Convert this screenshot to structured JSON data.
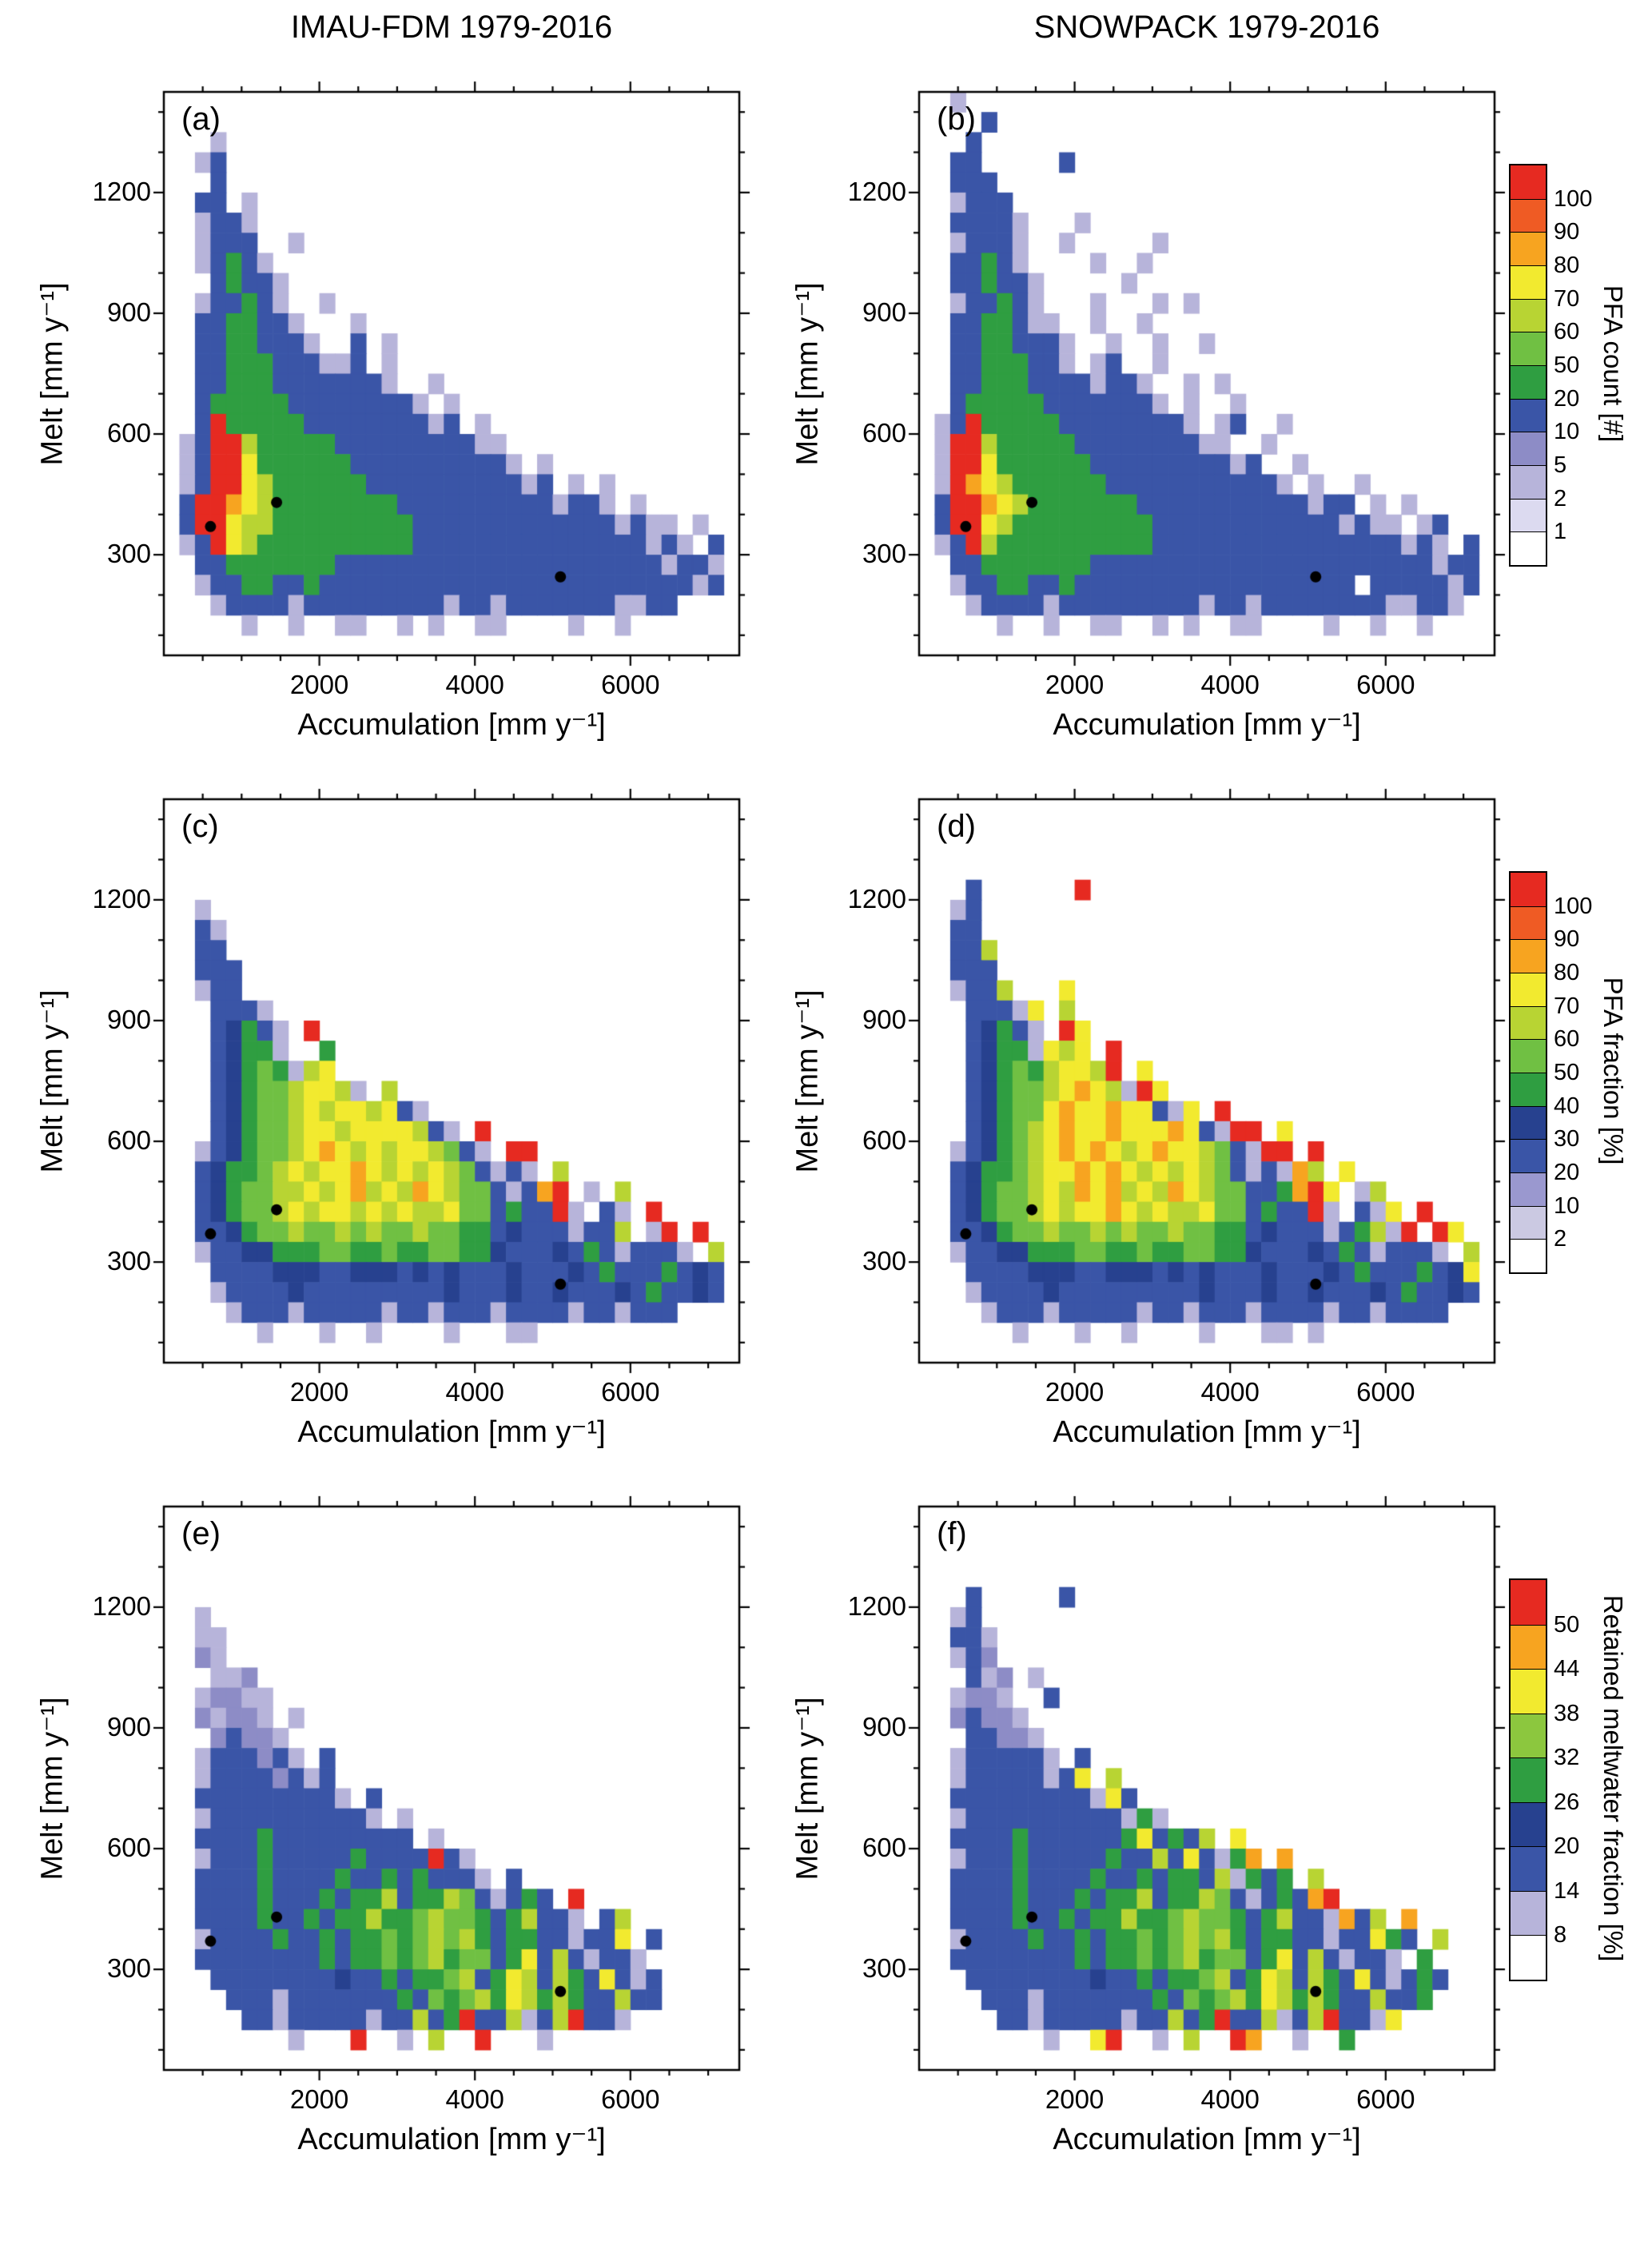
{
  "titles": {
    "left": "IMAU-FDM 1979-2016",
    "right": "SNOWPACK 1979-2016"
  },
  "palette": {
    "a": "#b7b4da",
    "b": "#8d8cc6",
    "c": "#3a55a7",
    "d": "#27418f",
    "e": "#2f9e41",
    "f": "#70c043",
    "g": "#b8d433",
    "h": "#f2ea2f",
    "i": "#f7a420",
    "j": "#ef5b24",
    "k": "#e62a21"
  },
  "colorbars": {
    "count": {
      "title": "PFA count [#]",
      "tick_labels": [
        "1",
        "2",
        "5",
        "10",
        "20",
        "50",
        "60",
        "70",
        "80",
        "90",
        "100"
      ],
      "box_colors_bottom_to_top": [
        "#ffffff",
        "#dcdaf0",
        "#b7b4da",
        "#8d8cc6",
        "#3a55a7",
        "#2f9e41",
        "#70c043",
        "#b8d433",
        "#f2ea2f",
        "#f7a420",
        "#ef5b24",
        "#e62a21"
      ]
    },
    "fraction": {
      "title": "PFA fraction [%]",
      "tick_labels": [
        "2",
        "10",
        "20",
        "30",
        "40",
        "50",
        "60",
        "70",
        "80",
        "90",
        "100"
      ],
      "box_colors_bottom_to_top": [
        "#ffffff",
        "#cbc9e2",
        "#9a98cf",
        "#3a55a7",
        "#27418f",
        "#2f9e41",
        "#70c043",
        "#b8d433",
        "#f2ea2f",
        "#f7a420",
        "#ef5b24",
        "#e62a21"
      ]
    },
    "retained": {
      "title": "Retained meltwater fraction [%]",
      "tick_labels": [
        "8",
        "14",
        "20",
        "26",
        "32",
        "38",
        "44",
        "50"
      ],
      "box_colors_bottom_to_top": [
        "#ffffff",
        "#b7b4da",
        "#3a55a7",
        "#27418f",
        "#2f9e41",
        "#8cc73e",
        "#f2ea2f",
        "#f7a420",
        "#e62a21"
      ]
    }
  },
  "chart_data": [
    {
      "id": "a",
      "type": "heatmap",
      "label": "(a)",
      "column_title": "IMAU-FDM 1979-2016",
      "xlabel": "Accumulation [mm y⁻¹]",
      "ylabel": "Melt [mm y⁻¹]",
      "x_range": [
        0,
        7400
      ],
      "y_range": [
        50,
        1450
      ],
      "x_ticks": [
        2000,
        4000,
        6000
      ],
      "y_ticks": [
        300,
        600,
        900,
        1200
      ],
      "x_minor_step": 500,
      "y_minor_step": 100,
      "cell_size": [
        200,
        50
      ],
      "colorbar": "count",
      "dots": [
        [
          600,
          370
        ],
        [
          1450,
          430
        ],
        [
          5100,
          245
        ]
      ],
      "grid": [
        "",
        "",
        "...a",
        "..ac",
        "...c",
        "..cc.a",
        "..acca",
        "..accc..a",
        "..aceca",
        "...cecca",
        "..acceca..a",
        "..cceecca...a",
        "..cceeccca..c.a",
        "..cceeecccaac.a",
        "..cceeeccccccca..a",
        "..ceeeeecccccccca.a",
        "..ckeeeeeccccccccac.a",
        ".ackkgeeeeecccccccccaa",
        ".ackkheeeeeecccccccccca.a",
        ".ackkhgeeeeeeccccccccccac.a.a",
        ".ckkihgeeeeeeeeccccccccccacca.a",
        ".ckkhggeeeeeeeeecccccccccccccacaa.a",
        ".ackhgeeeeeeeeeecccccccccccccccaca.c",
        "..cceeeeeeecccccccccccccccccccccacca",
        "..acceecceccccccccccccccccccccccccac",
        "...accccacccccccccaccacccccccaacc",
        ".....a..a..aa..a.a..aa....a..a",
        ""
      ]
    },
    {
      "id": "b",
      "type": "heatmap",
      "label": "(b)",
      "column_title": "SNOWPACK 1979-2016",
      "xlabel": "Accumulation [mm y⁻¹]",
      "ylabel": "Melt [mm y⁻¹]",
      "x_range": [
        0,
        7400
      ],
      "y_range": [
        50,
        1450
      ],
      "x_ticks": [
        2000,
        4000,
        6000
      ],
      "y_ticks": [
        300,
        600,
        900,
        1200
      ],
      "x_minor_step": 500,
      "y_minor_step": 100,
      "cell_size": [
        200,
        50
      ],
      "colorbar": "count",
      "dots": [
        [
          600,
          370
        ],
        [
          1450,
          430
        ],
        [
          5100,
          245
        ]
      ],
      "grid": [
        "..a",
        "....c",
        "...c",
        "..cc.....c",
        "..ccc",
        "..accc",
        "..cccca...a",
        "..accca..a.....a",
        "..cceca....a..a",
        "..ccecca.....a",
        "..acceca...a...a.a",
        "..cceecaa..a..a",
        "..cceeccca..a..a..a",
        "..cceeecca.ac..a",
        "..cceeeccccacca..a.a",
        "..ceeeeeccccccca.a..a",
        ".ackeeeeecccccccca.ac..a",
        ".akkgeeeeeccccccccaa..a",
        ".akkheeeeeecccccccccac..a",
        ".akihgeeeeeeccccccccccca.a..a",
        ".ckkihgeeeeeeecccccccccccacc.a.a",
        ".ckkhgeeeeeeeeeccccccccccccacaa.ac",
        ".ackgeeeeeeeeeeccccccccccccccccaca.c",
        "..cceeeeeeeccccccccccccccccccccccacc",
        "..acceeccecccccccccccccccccc.cccccac",
        "...accccacccccccccaccaccccccccaacca",
        ".....a..a..aa..a.a..aa....a..a..a",
        ""
      ]
    },
    {
      "id": "c",
      "type": "heatmap",
      "label": "(c)",
      "column_title": "IMAU-FDM 1979-2016",
      "xlabel": "Accumulation [mm y⁻¹]",
      "ylabel": "Melt [mm y⁻¹]",
      "x_range": [
        0,
        7400
      ],
      "y_range": [
        50,
        1450
      ],
      "x_ticks": [
        2000,
        4000,
        6000
      ],
      "y_ticks": [
        300,
        600,
        900,
        1200
      ],
      "x_minor_step": 500,
      "y_minor_step": 100,
      "cell_size": [
        200,
        50
      ],
      "colorbar": "fraction",
      "dots": [
        [
          600,
          370
        ],
        [
          1450,
          430
        ],
        [
          5100,
          245
        ]
      ],
      "grid": [
        "",
        "",
        "",
        "",
        "",
        "..a",
        "..ca",
        "..cc",
        "..ccc",
        "..acc",
        "...ccca",
        "...cdeca.k",
        "...cdeea..e",
        "...cdefeagh",
        "...cdeffghhga.g",
        "...cdeffghghhghca",
        "...cdeffghhghhhhgca.k",
        "..acdeffghihghghhgfca.kk",
        "..cdeefghghhihghghgfcaca.g",
        "..cdeffgghghighgihgffcacik.a.g",
        "..cdeffghghhghghgghffceccka.ca.k",
        "..ccdeffgffgfgffgffeecdcccaccg.ak.k",
        "..accddeeeffeefeeffeedcccdcecaccca.g",
        "...ccccdddccdddcdcdcccdcccdcecccecdc",
        "...accccdcccccccccdcccdccdcccdceccdc",
        "....acccacccccaccacccaccccaccaccc",
        "......a...a..a....a...aa",
        ""
      ]
    },
    {
      "id": "d",
      "type": "heatmap",
      "label": "(d)",
      "column_title": "SNOWPACK 1979-2016",
      "xlabel": "Accumulation [mm y⁻¹]",
      "ylabel": "Melt [mm y⁻¹]",
      "x_range": [
        0,
        7400
      ],
      "y_range": [
        50,
        1450
      ],
      "x_ticks": [
        2000,
        4000,
        6000
      ],
      "y_ticks": [
        300,
        600,
        900,
        1200
      ],
      "x_minor_step": 500,
      "y_minor_step": 100,
      "cell_size": [
        200,
        50
      ],
      "colorbar": "fraction",
      "dots": [
        [
          600,
          370
        ],
        [
          1450,
          430
        ],
        [
          5100,
          245
        ]
      ],
      "grid": [
        "",
        "",
        "",
        "",
        "...c......k",
        "..ac",
        "..cc",
        "..ccg",
        "..ccc",
        "..accg...h",
        "...cccah.g",
        "...cdeca.kh",
        "...cdeeahgh.k",
        "...cdefeghhgk.h",
        "...cdeffghihgakh",
        "...cdeffhihhihhcah.k",
        "...cdefghihhihhhihcakk.h",
        "..acdefghihihghihhgfcakk.k",
        "..cdeefghhihihghghgfcacaig.h",
        "..cdeffghgihighgihgffcceikh.ag",
        "..cdeffghghhihghgghffceccka.cah.k",
        "..ccdeffgffgfgffgffeecdcccacegak.kh",
        "..accddeeeffeefeeffeedcccdcecaccca.g",
        "...ccccdddccdddcdcdcccdcccdcecccecdh",
        "...accccdcccccccccdcccdccdcccdceccdc",
        "....acccacccccaccacccaccccaccacccc",
        "......a...a..a....a...aa.a",
        ""
      ]
    },
    {
      "id": "e",
      "type": "heatmap",
      "label": "(e)",
      "column_title": "IMAU-FDM 1979-2016",
      "xlabel": "Accumulation [mm y⁻¹]",
      "ylabel": "Melt [mm y⁻¹]",
      "x_range": [
        0,
        7400
      ],
      "y_range": [
        50,
        1450
      ],
      "x_ticks": [
        2000,
        4000,
        6000
      ],
      "y_ticks": [
        300,
        600,
        900,
        1200
      ],
      "x_minor_step": 500,
      "y_minor_step": 100,
      "cell_size": [
        200,
        50
      ],
      "colorbar": "retained",
      "dots": [
        [
          600,
          370
        ],
        [
          1450,
          430
        ],
        [
          5100,
          245
        ]
      ],
      "grid": [
        "",
        "",
        "",
        "",
        "",
        "..a",
        "..aa",
        "..ba",
        "...aab",
        "..abbaa",
        "..babba.a",
        "...bcbba",
        "..acccbca.c",
        "..accccbcac",
        "..ccccccccca.c",
        "..acccccccccca.a",
        "..cccceccccccccc.a",
        "..acccecccccecccckca",
        "..ccccecccceccececcca.c",
        "..cccceccceceegceegfcacec.k",
        "..ccccecceceegeefgffecegcca.cg",
        "..accccecceceefefgfgeceeccacch.c",
        "..cccccccceceefefgeffcehcgcacca",
        "...ccccccccdcceceefgcehgcgechcac",
        "....cccacccccccecfefgehgegeccgcc",
        ".....ccacccccaccgcekccgacgkcca",
        "........a...k..a.g..k...a",
        ""
      ]
    },
    {
      "id": "f",
      "type": "heatmap",
      "label": "(f)",
      "column_title": "SNOWPACK 1979-2016",
      "xlabel": "Accumulation [mm y⁻¹]",
      "ylabel": "Melt [mm y⁻¹]",
      "x_range": [
        0,
        7400
      ],
      "y_range": [
        50,
        1450
      ],
      "x_ticks": [
        2000,
        4000,
        6000
      ],
      "y_ticks": [
        300,
        600,
        900,
        1200
      ],
      "x_minor_step": 500,
      "y_minor_step": 100,
      "cell_size": [
        200,
        50
      ],
      "colorbar": "retained",
      "dots": [
        [
          600,
          370
        ],
        [
          1450,
          430
        ],
        [
          5100,
          245
        ]
      ],
      "grid": [
        "",
        "",
        "",
        "",
        "...c.....c",
        "..ac",
        "..cca",
        "..acb",
        "...cab.a",
        "..abba..c",
        "..bcbba",
        "...ccbba",
        "..accccca.c",
        "..acccccach.g",
        "..cccccccccahc",
        "..accccccccccaea",
        "..cccceccccccehcecg.h",
        "..accceccccceccgchcaei.i",
        "..cccceccccecceceecgaece.g",
        "..cccceccceceegceegfcacecik",
        "..ccccecceceegeefgffecegccaicg.i",
        "..accccecceceefefgfgeceeccacchec.g",
        "..cccccccceceefefgeffcehcgcacca.e",
        "...ccccccccdcceceefgcehgcgechcacec",
        "....cccacccccccecfefgehgegeccgcce",
        ".....ccacccccaccgcekccgacgkccah",
        "........a..hk..a.g..ki..a..e",
        ""
      ]
    }
  ]
}
